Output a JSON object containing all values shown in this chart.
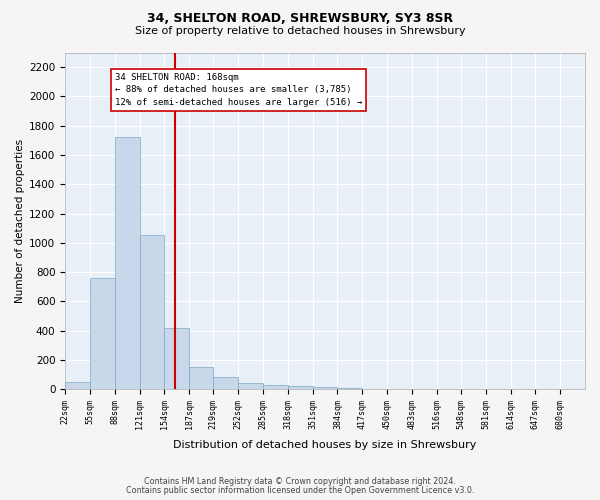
{
  "title1": "34, SHELTON ROAD, SHREWSBURY, SY3 8SR",
  "title2": "Size of property relative to detached houses in Shrewsbury",
  "xlabel": "Distribution of detached houses by size in Shrewsbury",
  "ylabel": "Number of detached properties",
  "annotation_title": "34 SHELTON ROAD: 168sqm",
  "annotation_line1": "← 88% of detached houses are smaller (3,785)",
  "annotation_line2": "12% of semi-detached houses are larger (516) →",
  "vline_x_bin": 5,
  "bin_edges": [
    22,
    55,
    88,
    121,
    154,
    187,
    219,
    252,
    285,
    318,
    351,
    384,
    417,
    450,
    483,
    516,
    548,
    581,
    614,
    647,
    680,
    713
  ],
  "values": [
    50,
    760,
    1720,
    1050,
    420,
    150,
    80,
    40,
    30,
    20,
    15,
    5,
    2,
    0,
    0,
    0,
    0,
    0,
    0,
    0,
    0
  ],
  "categories": [
    "22sqm",
    "55sqm",
    "88sqm",
    "121sqm",
    "154sqm",
    "187sqm",
    "219sqm",
    "252sqm",
    "285sqm",
    "318sqm",
    "351sqm",
    "384sqm",
    "417sqm",
    "450sqm",
    "483sqm",
    "516sqm",
    "548sqm",
    "581sqm",
    "614sqm",
    "647sqm",
    "680sqm"
  ],
  "bar_color": "#c8d8ea",
  "bar_edge_color": "#7aaac8",
  "vline_color": "#cc0000",
  "bg_color": "#e8eff6",
  "grid_color": "#ffffff",
  "fig_bg_color": "#f5f5f5",
  "ylim": [
    0,
    2300
  ],
  "yticks": [
    0,
    200,
    400,
    600,
    800,
    1000,
    1200,
    1400,
    1600,
    1800,
    2000,
    2200
  ],
  "footnote1": "Contains HM Land Registry data © Crown copyright and database right 2024.",
  "footnote2": "Contains public sector information licensed under the Open Government Licence v3.0."
}
